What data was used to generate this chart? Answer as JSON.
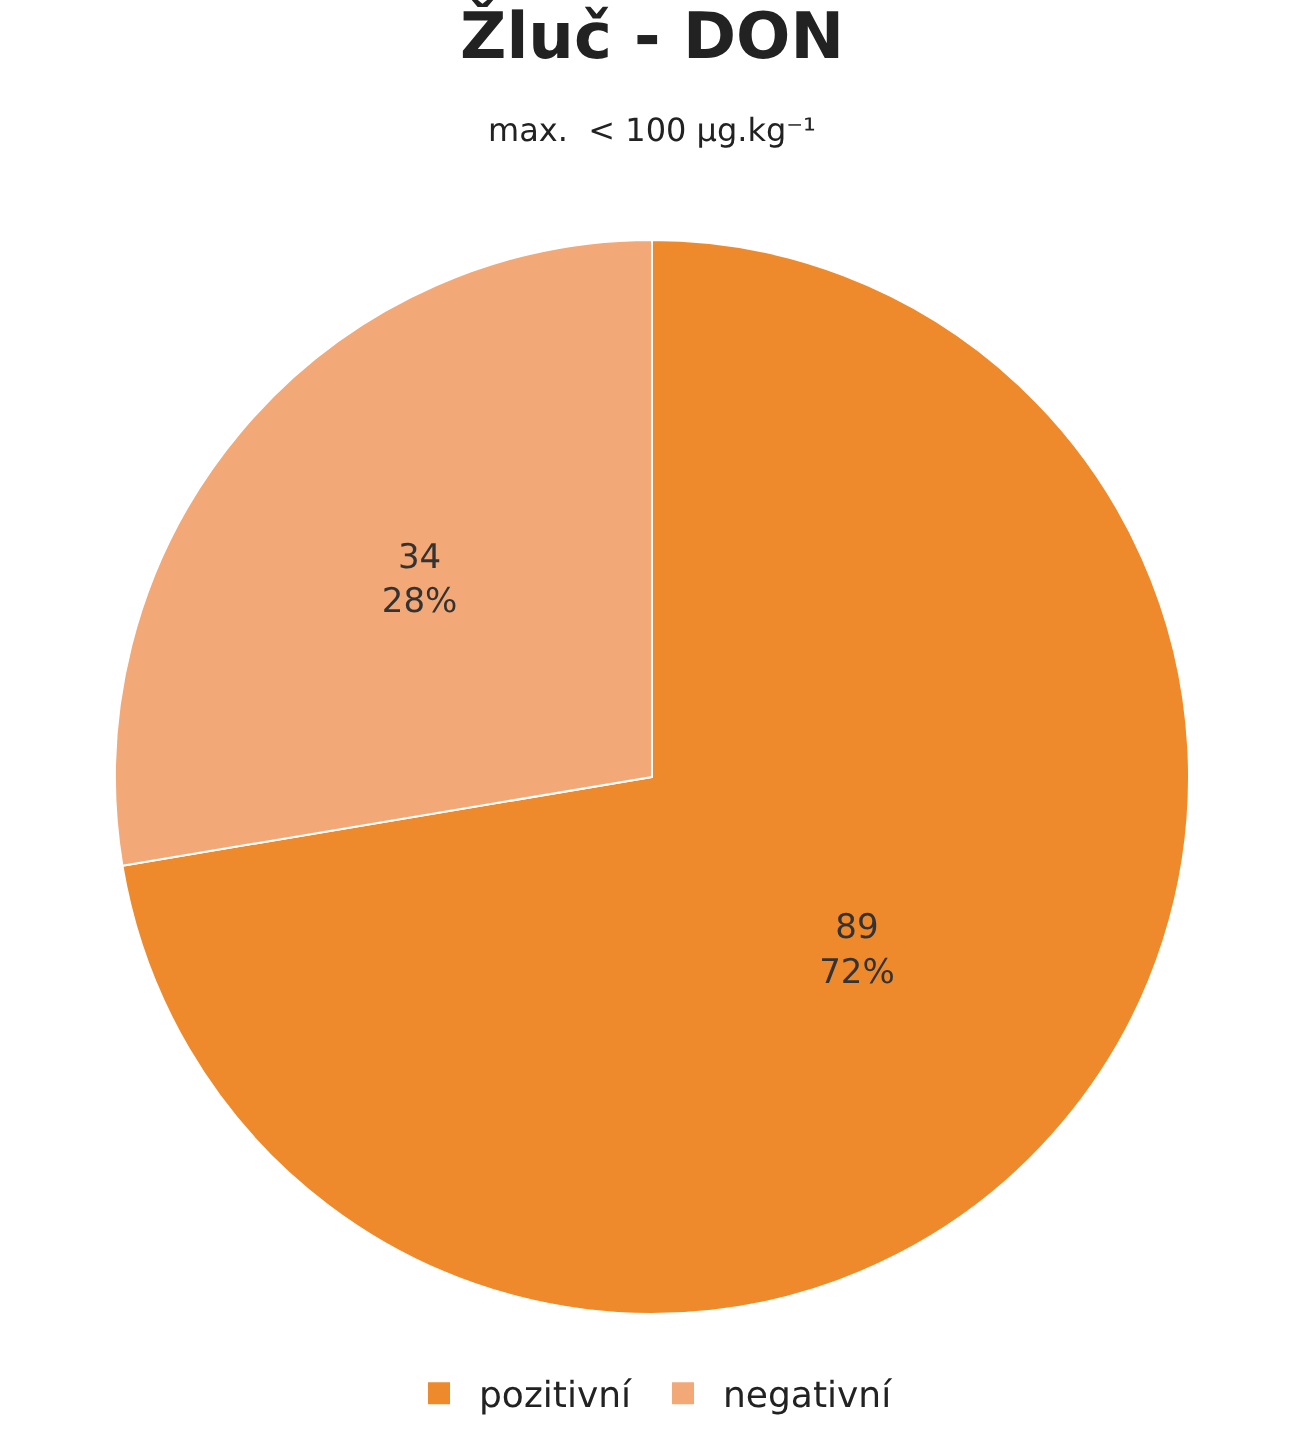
{
  "chart_data": {
    "type": "pie",
    "title": "Žluč - DON",
    "subtitle": "max.  < 100 μg.kg⁻¹",
    "categories": [
      "pozitivní",
      "negativní"
    ],
    "values": [
      89,
      34
    ],
    "colors": [
      "#ee8a2c",
      "#f2a877"
    ],
    "value_labels": [
      "89\n72%",
      "34\n28%"
    ],
    "legend": "bottom"
  }
}
